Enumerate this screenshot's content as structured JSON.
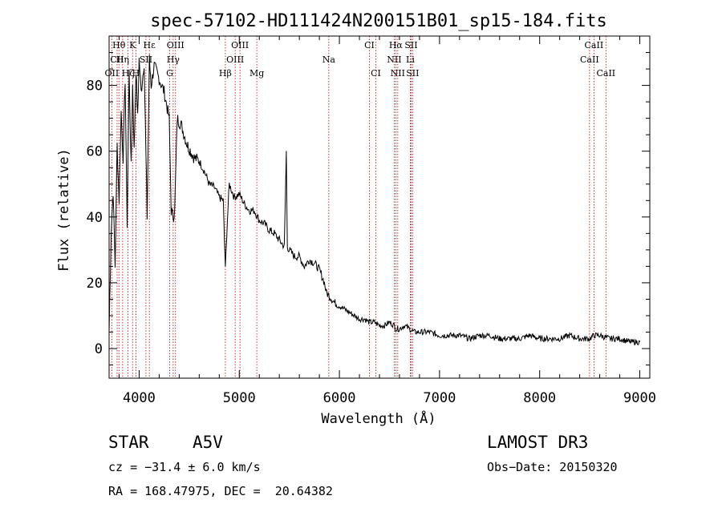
{
  "chart_data": {
    "type": "line",
    "title": "spec-57102-HD111424N200151B01_sp15-184.fits",
    "xlabel": "Wavelength (Å)",
    "ylabel": "Flux (relative)",
    "xlim": [
      3700,
      9100
    ],
    "ylim": [
      -9,
      95
    ],
    "xticks": [
      4000,
      5000,
      6000,
      7000,
      8000,
      9000
    ],
    "yticks": [
      0,
      20,
      40,
      60,
      80
    ],
    "series": [
      {
        "name": "spectrum",
        "x": [
          3700,
          3720,
          3740,
          3760,
          3780,
          3800,
          3820,
          3840,
          3860,
          3880,
          3900,
          3920,
          3935,
          3950,
          3968,
          3985,
          4000,
          4020,
          4050,
          4080,
          4102,
          4120,
          4150,
          4200,
          4250,
          4300,
          4320,
          4340,
          4355,
          4380,
          4420,
          4480,
          4550,
          4600,
          4650,
          4700,
          4750,
          4800,
          4840,
          4861,
          4875,
          4900,
          4950,
          5000,
          5050,
          5100,
          5150,
          5200,
          5250,
          5300,
          5350,
          5400,
          5450,
          5470,
          5480,
          5500,
          5550,
          5600,
          5650,
          5700,
          5750,
          5800,
          5850,
          5870,
          5900,
          5950,
          6000,
          6050,
          6100,
          6150,
          6200,
          6250,
          6300,
          6350,
          6400,
          6450,
          6500,
          6550,
          6563,
          6600,
          6650,
          6700,
          6750,
          6800,
          6900,
          7000,
          7100,
          7200,
          7300,
          7400,
          7500,
          7600,
          7700,
          7800,
          7900,
          8000,
          8100,
          8200,
          8300,
          8400,
          8500,
          8542,
          8600,
          8700,
          8800,
          8900,
          9000
        ],
        "values": [
          5,
          35,
          48,
          25,
          62,
          45,
          72,
          58,
          82,
          38,
          84,
          55,
          80,
          60,
          85,
          70,
          88,
          78,
          87,
          40,
          88,
          80,
          86,
          82,
          78,
          70,
          42,
          40,
          42,
          70,
          68,
          62,
          58,
          57,
          54,
          50,
          49,
          46,
          45,
          24,
          35,
          50,
          46,
          47,
          44,
          42,
          42,
          39,
          38,
          36,
          35,
          33,
          31,
          60,
          31,
          30,
          28,
          28,
          25,
          27,
          26,
          24,
          20,
          17,
          16,
          14,
          13,
          12,
          11,
          10,
          9,
          9,
          8,
          8,
          7,
          7,
          8,
          7,
          6,
          6,
          7,
          6,
          5,
          5,
          5,
          4,
          4,
          4,
          3,
          4,
          4,
          3,
          3,
          3,
          4,
          3,
          3,
          3,
          4,
          3,
          3,
          4,
          4,
          3,
          3,
          2,
          2
        ]
      }
    ],
    "spectral_lines": [
      {
        "name": "Hθ",
        "wavelength": 3798,
        "row": 0
      },
      {
        "name": "CII",
        "wavelength": 3780,
        "row": 1
      },
      {
        "name": "OII",
        "wavelength": 3727,
        "row": 2
      },
      {
        "name": "K",
        "wavelength": 3934,
        "row": 0
      },
      {
        "name": "Hη",
        "wavelength": 3835,
        "row": 1
      },
      {
        "name": "Hζ",
        "wavelength": 3889,
        "row": 2
      },
      {
        "name": "H",
        "wavelength": 3968,
        "row": 2
      },
      {
        "name": "SII",
        "wavelength": 4068,
        "row": 1
      },
      {
        "name": "Hε",
        "wavelength": 4102,
        "row": 0
      },
      {
        "name": "OIII",
        "wavelength": 4363,
        "row": 0
      },
      {
        "name": "Hγ",
        "wavelength": 4340,
        "row": 1
      },
      {
        "name": "G",
        "wavelength": 4305,
        "row": 2
      },
      {
        "name": "OIII",
        "wavelength": 4959,
        "row": 1
      },
      {
        "name": "OIII",
        "wavelength": 5007,
        "row": 0
      },
      {
        "name": "Hβ",
        "wavelength": 4861,
        "row": 2
      },
      {
        "name": "Mg",
        "wavelength": 5175,
        "row": 2
      },
      {
        "name": "Na",
        "wavelength": 5894,
        "row": 1
      },
      {
        "name": "CI",
        "wavelength": 6300,
        "row": 0
      },
      {
        "name": "CI",
        "wavelength": 6364,
        "row": 2
      },
      {
        "name": "Hα",
        "wavelength": 6563,
        "row": 0
      },
      {
        "name": "NII",
        "wavelength": 6548,
        "row": 1
      },
      {
        "name": "NII",
        "wavelength": 6583,
        "row": 2
      },
      {
        "name": "SII",
        "wavelength": 6716,
        "row": 0
      },
      {
        "name": "Li",
        "wavelength": 6708,
        "row": 1
      },
      {
        "name": "SII",
        "wavelength": 6731,
        "row": 2
      },
      {
        "name": "CaII",
        "wavelength": 8542,
        "row": 0
      },
      {
        "name": "CaII",
        "wavelength": 8498,
        "row": 1
      },
      {
        "name": "CaII",
        "wavelength": 8662,
        "row": 2
      }
    ]
  },
  "info": {
    "object_class": "STAR",
    "subclass": "A5V",
    "survey": "LAMOST DR3",
    "redshift": "cz = −31.4 ± 6.0 km/s",
    "obs_date": "Obs−Date: 20150320",
    "coords": "RA = 168.47975, DEC =  20.64382"
  },
  "colors": {
    "spectrum": "#000000",
    "line_marker": "#c00000",
    "axes": "#000000"
  }
}
